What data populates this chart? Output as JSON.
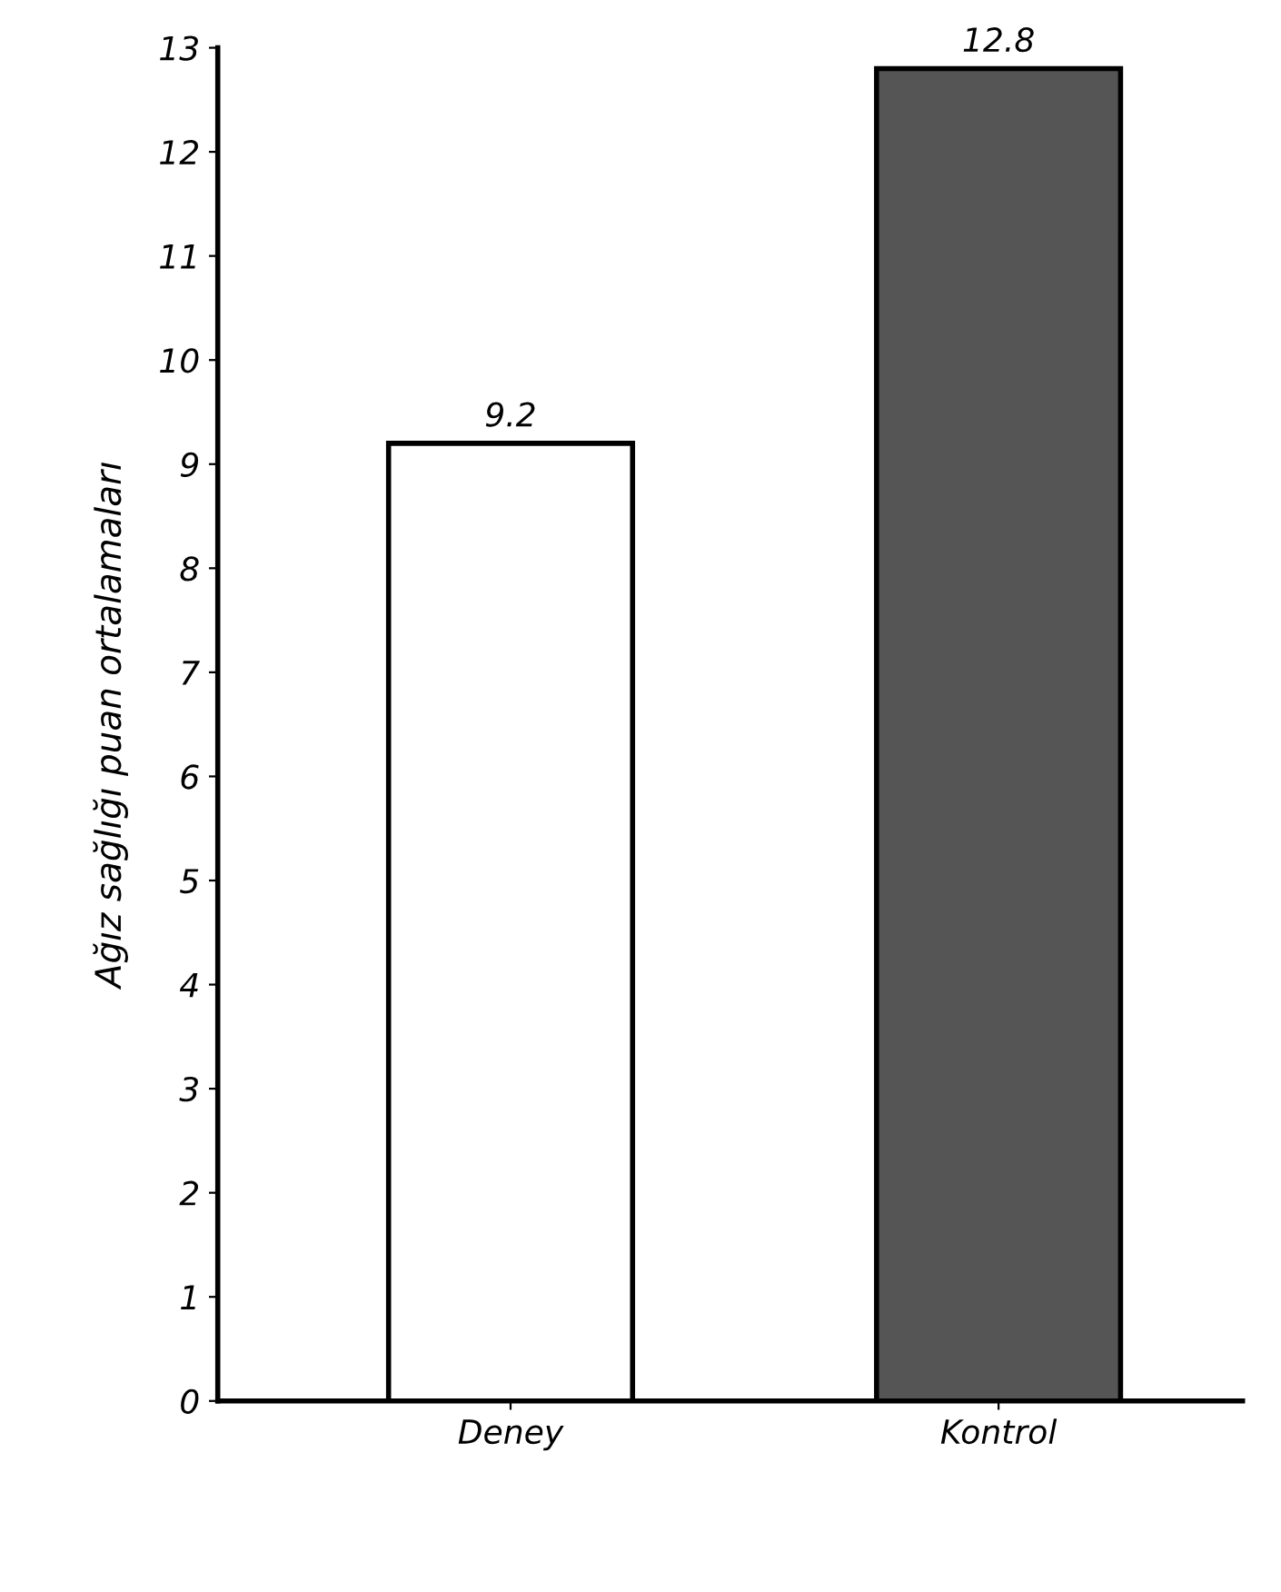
{
  "chart_data": {
    "type": "bar",
    "ylabel": "Ağız sağlığı puan ortalamaları",
    "categories": [
      "Deney",
      "Kontrol"
    ],
    "values": [
      9.2,
      12.8
    ],
    "colors": [
      "#ffffff",
      "#555555"
    ],
    "ylim": [
      0,
      13
    ],
    "yticks": [
      0,
      1,
      2,
      3,
      4,
      5,
      6,
      7,
      8,
      9,
      10,
      11,
      12,
      13
    ],
    "data_labels": true,
    "grid": false,
    "legend": false
  }
}
